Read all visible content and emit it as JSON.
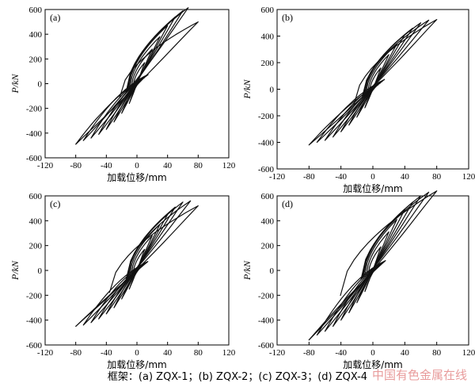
{
  "chart_data": [
    {
      "type": "line",
      "panel_label": "(a)",
      "xlabel": "加载位移/mm",
      "ylabel": "P/kN",
      "xlim": [
        -120,
        120
      ],
      "ylim": [
        -600,
        600
      ],
      "xticks": [
        -120,
        -80,
        -40,
        0,
        40,
        80,
        120
      ],
      "yticks": [
        -600,
        -400,
        -200,
        0,
        200,
        400,
        600
      ],
      "grid": false,
      "series": [
        {
          "name": "hysteresis",
          "description": "cyclic load-displacement loops of frame ZQX-1",
          "loops": [
            {
              "amp_pos": 10,
              "peak_pos": 170,
              "amp_neg": -10,
              "peak_neg": -160,
              "residual_pos": 40,
              "residual_neg": -40
            },
            {
              "amp_pos": 20,
              "peak_pos": 280,
              "amp_neg": -20,
              "peak_neg": -240,
              "residual_pos": 65,
              "residual_neg": -60
            },
            {
              "amp_pos": 30,
              "peak_pos": 380,
              "amp_neg": -30,
              "peak_neg": -310,
              "residual_pos": 85,
              "residual_neg": -80
            },
            {
              "amp_pos": 40,
              "peak_pos": 470,
              "amp_neg": -40,
              "peak_neg": -370,
              "residual_pos": 100,
              "residual_neg": -95
            },
            {
              "amp_pos": 50,
              "peak_pos": 540,
              "amp_neg": -50,
              "peak_neg": -410,
              "residual_pos": 110,
              "residual_neg": -105
            },
            {
              "amp_pos": 60,
              "peak_pos": 590,
              "amp_neg": -60,
              "peak_neg": -440,
              "residual_pos": 120,
              "residual_neg": -115
            },
            {
              "amp_pos": 67,
              "peak_pos": 615,
              "amp_neg": -70,
              "peak_neg": -460,
              "residual_pos": 125,
              "residual_neg": -120
            },
            {
              "amp_pos": 80,
              "peak_pos": 500,
              "amp_neg": -80,
              "peak_neg": -490,
              "residual_pos": 120,
              "residual_neg": -190
            }
          ]
        }
      ]
    },
    {
      "type": "line",
      "panel_label": "(b)",
      "xlabel": "加载位移/mm",
      "ylabel": "P/kN",
      "xlim": [
        -120,
        120
      ],
      "ylim": [
        -600,
        600
      ],
      "xticks": [
        -120,
        -80,
        -40,
        0,
        40,
        80,
        120
      ],
      "yticks": [
        -600,
        -400,
        -200,
        0,
        200,
        400,
        600
      ],
      "grid": false,
      "series": [
        {
          "name": "hysteresis",
          "description": "cyclic load-displacement loops of frame ZQX-2",
          "loops": [
            {
              "amp_pos": 10,
              "peak_pos": 160,
              "amp_neg": -10,
              "peak_neg": -140,
              "residual_pos": 35,
              "residual_neg": -35
            },
            {
              "amp_pos": 20,
              "peak_pos": 260,
              "amp_neg": -20,
              "peak_neg": -210,
              "residual_pos": 60,
              "residual_neg": -55
            },
            {
              "amp_pos": 30,
              "peak_pos": 340,
              "amp_neg": -30,
              "peak_neg": -270,
              "residual_pos": 80,
              "residual_neg": -75
            },
            {
              "amp_pos": 40,
              "peak_pos": 410,
              "amp_neg": -40,
              "peak_neg": -320,
              "residual_pos": 95,
              "residual_neg": -90
            },
            {
              "amp_pos": 50,
              "peak_pos": 460,
              "amp_neg": -50,
              "peak_neg": -360,
              "residual_pos": 105,
              "residual_neg": -100
            },
            {
              "amp_pos": 60,
              "peak_pos": 500,
              "amp_neg": -60,
              "peak_neg": -385,
              "residual_pos": 115,
              "residual_neg": -110
            },
            {
              "amp_pos": 70,
              "peak_pos": 520,
              "amp_neg": -70,
              "peak_neg": -400,
              "residual_pos": 120,
              "residual_neg": -115
            },
            {
              "amp_pos": 80,
              "peak_pos": 525,
              "amp_neg": -80,
              "peak_neg": -420,
              "residual_pos": 125,
              "residual_neg": -200
            }
          ]
        }
      ]
    },
    {
      "type": "line",
      "panel_label": "(c)",
      "xlabel": "加载位移/mm",
      "ylabel": "P/kN",
      "xlim": [
        -120,
        120
      ],
      "ylim": [
        -600,
        600
      ],
      "xticks": [
        -120,
        -80,
        -40,
        0,
        40,
        80,
        120
      ],
      "yticks": [
        -600,
        -400,
        -200,
        0,
        200,
        400,
        600
      ],
      "grid": false,
      "series": [
        {
          "name": "hysteresis",
          "description": "cyclic load-displacement loops of frame ZQX-3",
          "loops": [
            {
              "amp_pos": 10,
              "peak_pos": 170,
              "amp_neg": -10,
              "peak_neg": -150,
              "residual_pos": 40,
              "residual_neg": -40
            },
            {
              "amp_pos": 20,
              "peak_pos": 280,
              "amp_neg": -20,
              "peak_neg": -230,
              "residual_pos": 65,
              "residual_neg": -60
            },
            {
              "amp_pos": 30,
              "peak_pos": 370,
              "amp_neg": -30,
              "peak_neg": -300,
              "residual_pos": 85,
              "residual_neg": -80
            },
            {
              "amp_pos": 40,
              "peak_pos": 450,
              "amp_neg": -40,
              "peak_neg": -350,
              "residual_pos": 100,
              "residual_neg": -95
            },
            {
              "amp_pos": 50,
              "peak_pos": 510,
              "amp_neg": -50,
              "peak_neg": -390,
              "residual_pos": 110,
              "residual_neg": -105
            },
            {
              "amp_pos": 60,
              "peak_pos": 550,
              "amp_neg": -60,
              "peak_neg": -420,
              "residual_pos": 118,
              "residual_neg": -112
            },
            {
              "amp_pos": 70,
              "peak_pos": 560,
              "amp_neg": -70,
              "peak_neg": -440,
              "residual_pos": 122,
              "residual_neg": -118
            },
            {
              "amp_pos": 80,
              "peak_pos": 520,
              "amp_neg": -80,
              "peak_neg": -450,
              "residual_pos": 120,
              "residual_neg": -300
            }
          ]
        }
      ]
    },
    {
      "type": "line",
      "panel_label": "(d)",
      "xlabel": "加载位移/mm",
      "ylabel": "P/kN",
      "xlim": [
        -120,
        120
      ],
      "ylim": [
        -600,
        600
      ],
      "xticks": [
        -120,
        -80,
        -40,
        0,
        40,
        80,
        120
      ],
      "yticks": [
        -600,
        -400,
        -200,
        0,
        200,
        400,
        600
      ],
      "grid": false,
      "series": [
        {
          "name": "hysteresis",
          "description": "cyclic load-displacement loops of frame ZQX-4",
          "loops": [
            {
              "amp_pos": 10,
              "peak_pos": 190,
              "amp_neg": -10,
              "peak_neg": -170,
              "residual_pos": 45,
              "residual_neg": -45
            },
            {
              "amp_pos": 20,
              "peak_pos": 310,
              "amp_neg": -20,
              "peak_neg": -260,
              "residual_pos": 70,
              "residual_neg": -65
            },
            {
              "amp_pos": 30,
              "peak_pos": 410,
              "amp_neg": -30,
              "peak_neg": -340,
              "residual_pos": 90,
              "residual_neg": -85
            },
            {
              "amp_pos": 40,
              "peak_pos": 490,
              "amp_neg": -40,
              "peak_neg": -400,
              "residual_pos": 105,
              "residual_neg": -100
            },
            {
              "amp_pos": 50,
              "peak_pos": 550,
              "amp_neg": -50,
              "peak_neg": -450,
              "residual_pos": 115,
              "residual_neg": -110
            },
            {
              "amp_pos": 60,
              "peak_pos": 600,
              "amp_neg": -60,
              "peak_neg": -490,
              "residual_pos": 125,
              "residual_neg": -120
            },
            {
              "amp_pos": 70,
              "peak_pos": 630,
              "amp_neg": -70,
              "peak_neg": -520,
              "residual_pos": 130,
              "residual_neg": -125
            },
            {
              "amp_pos": 80,
              "peak_pos": 640,
              "amp_neg": -80,
              "peak_neg": -560,
              "residual_pos": 135,
              "residual_neg": -340
            }
          ]
        }
      ]
    }
  ],
  "caption": "框架：(a) ZQX-1；(b) ZQX-2；(c) ZQX-3；(d) ZQX-4",
  "watermark": "中国有色金属在线"
}
